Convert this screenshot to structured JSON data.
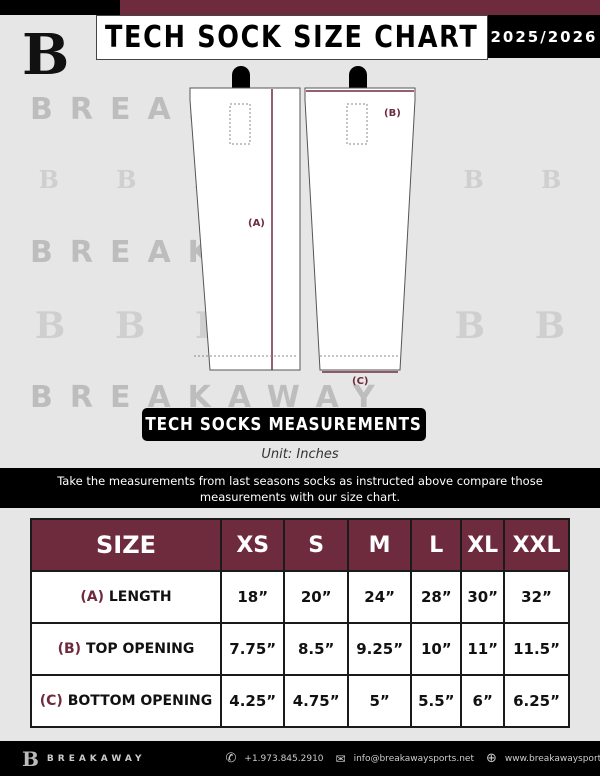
{
  "header": {
    "title": "TECH SOCK SIZE CHART",
    "season": "2025/2026",
    "logo_letter": "B"
  },
  "watermark": {
    "text": "BREAKAWAY"
  },
  "diagram": {
    "label_a": "(A)",
    "label_b": "(B)",
    "label_c": "(C)"
  },
  "banner": {
    "title": "TECH SOCKS MEASUREMENTS",
    "unit": "Unit: Inches"
  },
  "instructions": "Take the measurements from last seasons socks as instructed above compare those measurements  with our size chart.",
  "colors": {
    "accent": "#6e2b3e",
    "dark": "#000000"
  },
  "table": {
    "header": [
      "SIZE",
      "XS",
      "S",
      "M",
      "L",
      "XL",
      "XXL"
    ],
    "rows": [
      {
        "code": "(A)",
        "label": "LENGTH",
        "values": [
          "18”",
          "20”",
          "24”",
          "28”",
          "30”",
          "32”"
        ]
      },
      {
        "code": "(B)",
        "label": "TOP OPENING",
        "values": [
          "7.75”",
          "8.5”",
          "9.25”",
          "10”",
          "11”",
          "11.5”"
        ]
      },
      {
        "code": "(C)",
        "label": "BOTTOM OPENING",
        "values": [
          "4.25”",
          "4.75”",
          "5”",
          "5.5”",
          "6”",
          "6.25”"
        ]
      }
    ]
  },
  "footer": {
    "brand": "BREAKAWAY",
    "phone": "+1.973.845.2910",
    "email": "info@breakawaysports.net",
    "website": "www.breakawaysports.net"
  }
}
